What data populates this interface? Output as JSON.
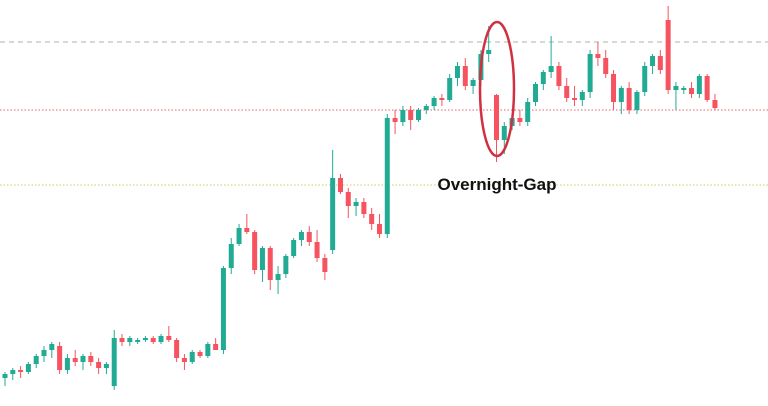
{
  "chart_data": {
    "type": "candlestick",
    "annotation": "Overnight-Gap",
    "up_color": "#22ab94",
    "down_color": "#f7525f",
    "xlim": [
      -0.64,
      97.8
    ],
    "ylim": [
      0,
      101.5
    ],
    "levels": [
      {
        "value": 91,
        "color": "#b0b0b0",
        "style": "dashed"
      },
      {
        "value": 74,
        "color": "#e06070",
        "style": "dotted"
      },
      {
        "value": 55.25,
        "color": "#c8d060",
        "style": "dotted"
      }
    ],
    "x": [
      0,
      1,
      2,
      3,
      4,
      5,
      6,
      7,
      8,
      9,
      10,
      11,
      12,
      13,
      14,
      15,
      16,
      17,
      18,
      19,
      20,
      21,
      22,
      23,
      24,
      25,
      26,
      27,
      28,
      29,
      30,
      31,
      32,
      33,
      34,
      35,
      36,
      37,
      38,
      39,
      40,
      41,
      42,
      43,
      44,
      45,
      46,
      47,
      48,
      49,
      50,
      51,
      52,
      53,
      54,
      55,
      56,
      57,
      58,
      59,
      60,
      61,
      62,
      63,
      64,
      65,
      66,
      67,
      68,
      69,
      70,
      71,
      72,
      73,
      74,
      75,
      76,
      77,
      78,
      79,
      80,
      81,
      82,
      83,
      84,
      85,
      86,
      87,
      88,
      89,
      90,
      91
    ],
    "open": [
      7,
      8,
      9,
      8.5,
      10.5,
      12.5,
      14,
      15,
      9,
      12,
      11,
      12.5,
      11,
      9.5,
      5,
      17,
      16,
      16,
      16.5,
      17,
      16,
      17.5,
      16.5,
      12,
      11,
      13.5,
      12.5,
      15.5,
      14,
      34.5,
      40.5,
      44.5,
      43.5,
      34,
      39.5,
      31.5,
      33,
      37.5,
      41.5,
      43.5,
      41,
      37,
      39,
      57,
      53.5,
      50,
      51,
      48,
      45.5,
      43,
      72,
      71,
      74,
      71.5,
      74,
      75,
      77,
      76.5,
      82,
      85,
      80,
      81.5,
      88,
      77.75,
      66.5,
      70,
      72,
      71,
      76,
      80.5,
      83.5,
      85,
      80,
      77,
      76.5,
      78.5,
      88,
      87,
      83,
      76,
      79.5,
      74,
      78.5,
      85,
      87.5,
      96.5,
      79,
      79,
      79.5,
      78,
      82.5,
      76.5
    ],
    "high": [
      8.5,
      9.5,
      10,
      11,
      13,
      15,
      16,
      16,
      13,
      14,
      13,
      13.5,
      12,
      11,
      19,
      18,
      17.5,
      17,
      17.5,
      17.5,
      18,
      20,
      17,
      13,
      14,
      14,
      16,
      17,
      35,
      42,
      45.5,
      48,
      44,
      40,
      40,
      35,
      38,
      42,
      44,
      45,
      44,
      38,
      64,
      58,
      54.5,
      52,
      52,
      49.5,
      48,
      73,
      74,
      75,
      75,
      74.5,
      75.5,
      77.5,
      78,
      83,
      86,
      87,
      82,
      89,
      95,
      78,
      71,
      73,
      74,
      77,
      81,
      84,
      92.5,
      86,
      82,
      80,
      79,
      89,
      91,
      89,
      84,
      80,
      81,
      79,
      86,
      88,
      89,
      100,
      81,
      80,
      81,
      83,
      83,
      78
    ],
    "low": [
      5,
      6.5,
      7,
      8,
      9.5,
      11,
      12,
      8,
      8,
      10,
      9,
      10,
      8,
      8,
      4,
      15,
      15,
      15.5,
      16,
      15.5,
      15.5,
      16,
      11,
      9,
      10.5,
      12,
      12,
      14.5,
      13,
      33,
      40,
      43,
      33,
      31,
      29,
      28,
      32,
      37,
      40,
      40,
      36,
      31.5,
      38,
      53,
      47,
      47.5,
      47,
      44,
      42,
      42,
      68,
      70,
      69,
      71,
      73,
      74,
      75,
      76,
      80,
      79,
      78,
      80,
      86,
      61,
      63,
      69,
      70,
      70,
      75,
      79,
      82,
      79,
      76,
      75,
      75,
      77,
      85,
      82,
      74,
      73,
      73,
      73,
      77.5,
      83,
      83,
      78,
      74,
      78,
      77,
      77,
      76,
      74
    ],
    "close": [
      8,
      9,
      8.5,
      10.5,
      12.5,
      14,
      15.5,
      9,
      12,
      11,
      12.5,
      11,
      9.5,
      10.5,
      17,
      16,
      17,
      16.5,
      17,
      16,
      17.5,
      16.5,
      12,
      11,
      13.5,
      12.5,
      15.5,
      14,
      34.5,
      40.5,
      44.5,
      43.5,
      34,
      39.5,
      31.5,
      33,
      37.5,
      41.5,
      43.5,
      41,
      37,
      33.5,
      57,
      53.5,
      50,
      51,
      48,
      45.5,
      43,
      72,
      71,
      74,
      71.5,
      74,
      75,
      77,
      76.5,
      82,
      85,
      80,
      81.5,
      88,
      89,
      66.5,
      70,
      72,
      71,
      76,
      80.5,
      83.5,
      85,
      80,
      77,
      76.5,
      78.5,
      88,
      87,
      83,
      76,
      79.5,
      74,
      78.5,
      85,
      87.5,
      84,
      79,
      80,
      79.5,
      78,
      82.5,
      76.5,
      74.5
    ]
  }
}
